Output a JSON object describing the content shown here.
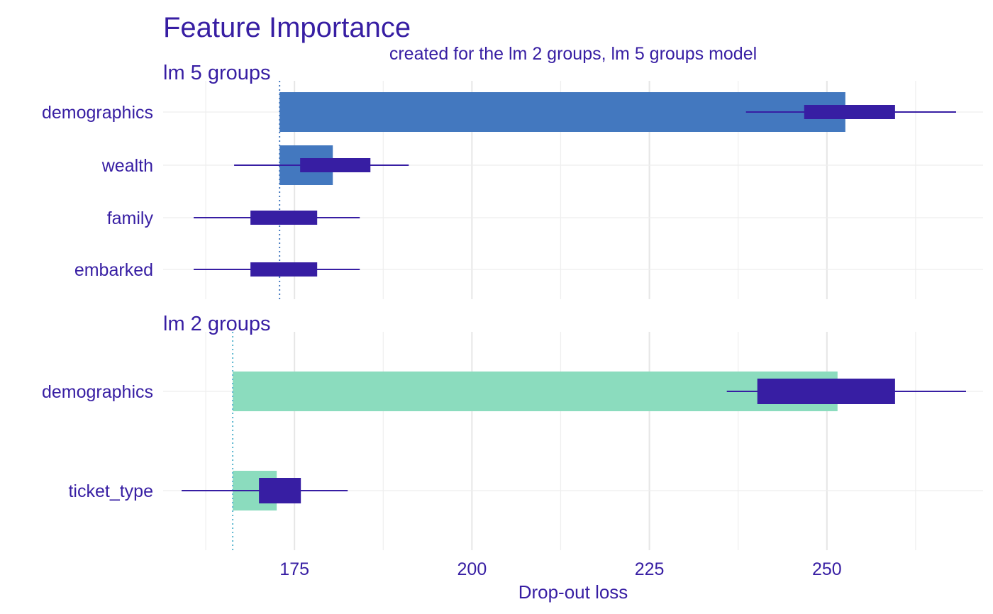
{
  "chart_data": {
    "type": "bar",
    "title": "Feature Importance",
    "subtitle": "created for the lm 2 groups, lm 5 groups model",
    "xlabel": "Drop-out loss",
    "xlim": [
      156.5,
      272
    ],
    "x_ticks": [
      175,
      200,
      225,
      250
    ],
    "x_minor_ticks": [
      162.5,
      187.5,
      212.5,
      237.5,
      262.5
    ],
    "grid": true,
    "legend": "none",
    "colors": {
      "text": "#371ea3",
      "lm 5 groups": "#4378bf",
      "lm 2 groups": "#8bdcbe",
      "boxplot": "#371ea3",
      "grid_major": "#e6e6e6",
      "grid_minor": "#eeeeee"
    },
    "panels": [
      {
        "name": "lm 5 groups",
        "baseline": 172.9,
        "categories": [
          "demographics",
          "wealth",
          "family",
          "embarked"
        ],
        "values": [
          252.6,
          180.4,
          168.8,
          168.8
        ],
        "boxplots": [
          {
            "min": 238.6,
            "q1": 246.8,
            "q3": 259.6,
            "max": 268.2
          },
          {
            "min": 166.5,
            "q1": 175.8,
            "q3": 185.7,
            "max": 191.1
          },
          {
            "min": 160.8,
            "q1": 168.8,
            "q3": 178.2,
            "max": 184.2
          },
          {
            "min": 160.8,
            "q1": 168.8,
            "q3": 178.2,
            "max": 184.2
          }
        ]
      },
      {
        "name": "lm 2 groups",
        "baseline": 166.3,
        "categories": [
          "demographics",
          "ticket_type"
        ],
        "values": [
          251.5,
          172.5
        ],
        "boxplots": [
          {
            "min": 235.9,
            "q1": 240.2,
            "q3": 259.6,
            "max": 269.6
          },
          {
            "min": 159.1,
            "q1": 170.0,
            "q3": 175.9,
            "max": 182.5
          }
        ]
      }
    ]
  }
}
